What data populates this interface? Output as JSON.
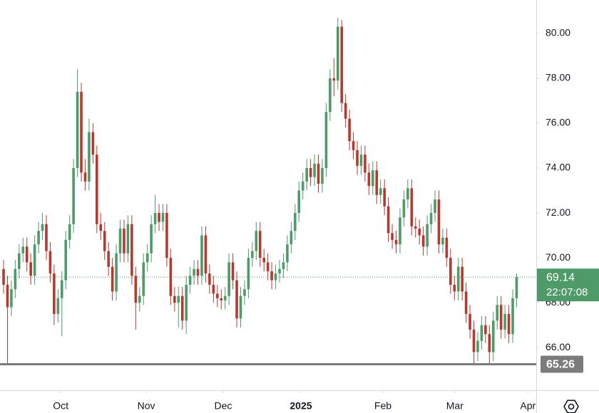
{
  "chart_data": {
    "type": "candlestick",
    "series": [
      {
        "color_up": "#4e9a69",
        "color_down": "#b33a31",
        "values": [
          [
            69.5,
            69.9,
            68.4,
            68.8
          ],
          [
            68.8,
            69.2,
            65.3,
            67.8
          ],
          [
            67.8,
            69.0,
            67.4,
            68.6
          ],
          [
            68.6,
            69.9,
            68.2,
            69.5
          ],
          [
            69.5,
            70.6,
            69.1,
            70.2
          ],
          [
            70.2,
            70.9,
            69.8,
            70.5
          ],
          [
            70.5,
            70.9,
            69.4,
            69.8
          ],
          [
            69.8,
            70.2,
            68.8,
            69.2
          ],
          [
            69.2,
            71.0,
            68.8,
            70.6
          ],
          [
            70.6,
            71.6,
            70.2,
            71.2
          ],
          [
            71.2,
            72.0,
            70.8,
            71.5
          ],
          [
            71.5,
            71.9,
            69.9,
            70.3
          ],
          [
            70.3,
            70.7,
            68.9,
            69.3
          ],
          [
            69.3,
            69.7,
            67.0,
            67.5
          ],
          [
            67.5,
            68.6,
            67.1,
            68.2
          ],
          [
            68.2,
            69.4,
            66.5,
            69.0
          ],
          [
            69.0,
            71.2,
            68.6,
            70.8
          ],
          [
            70.8,
            71.9,
            70.4,
            71.5
          ],
          [
            71.5,
            74.4,
            71.1,
            74.0
          ],
          [
            74.0,
            78.4,
            73.6,
            77.4
          ],
          [
            77.4,
            77.8,
            73.4,
            73.8
          ],
          [
            73.8,
            74.4,
            73.0,
            73.4
          ],
          [
            73.4,
            76.2,
            73.0,
            75.6
          ],
          [
            75.6,
            76.0,
            74.2,
            74.6
          ],
          [
            74.6,
            75.0,
            71.1,
            71.5
          ],
          [
            71.5,
            72.0,
            70.8,
            71.2
          ],
          [
            71.2,
            71.6,
            69.9,
            70.3
          ],
          [
            70.3,
            70.7,
            69.2,
            69.6
          ],
          [
            69.6,
            70.0,
            68.1,
            68.5
          ],
          [
            68.5,
            70.6,
            68.1,
            70.2
          ],
          [
            70.2,
            71.7,
            69.8,
            71.3
          ],
          [
            71.3,
            71.7,
            69.8,
            70.2
          ],
          [
            70.2,
            71.9,
            69.8,
            71.5
          ],
          [
            71.5,
            71.9,
            68.8,
            69.2
          ],
          [
            69.2,
            69.6,
            66.8,
            68.0
          ],
          [
            68.0,
            68.7,
            67.6,
            68.3
          ],
          [
            68.3,
            70.2,
            67.9,
            69.8
          ],
          [
            69.8,
            70.6,
            69.4,
            70.2
          ],
          [
            70.2,
            71.9,
            69.8,
            71.5
          ],
          [
            71.5,
            72.8,
            71.1,
            72.0
          ],
          [
            72.0,
            72.4,
            71.2,
            71.6
          ],
          [
            71.6,
            72.4,
            71.2,
            72.0
          ],
          [
            72.0,
            72.4,
            69.6,
            70.0
          ],
          [
            70.0,
            70.4,
            67.9,
            68.3
          ],
          [
            68.3,
            68.7,
            67.6,
            68.0
          ],
          [
            68.0,
            68.7,
            66.9,
            68.3
          ],
          [
            68.3,
            68.7,
            66.8,
            67.2
          ],
          [
            67.2,
            69.2,
            66.6,
            68.8
          ],
          [
            68.8,
            69.6,
            68.4,
            69.2
          ],
          [
            69.2,
            69.9,
            68.8,
            69.5
          ],
          [
            69.5,
            69.9,
            68.8,
            69.2
          ],
          [
            69.2,
            71.4,
            68.8,
            71.0
          ],
          [
            71.0,
            71.4,
            68.9,
            69.3
          ],
          [
            69.3,
            69.7,
            68.4,
            68.8
          ],
          [
            68.8,
            69.2,
            68.0,
            68.4
          ],
          [
            68.4,
            68.8,
            67.8,
            68.2
          ],
          [
            68.2,
            68.6,
            67.7,
            68.1
          ],
          [
            68.1,
            68.7,
            67.7,
            68.3
          ],
          [
            68.3,
            70.2,
            67.9,
            69.8
          ],
          [
            69.8,
            70.2,
            68.6,
            69.0
          ],
          [
            69.0,
            69.4,
            66.9,
            67.3
          ],
          [
            67.3,
            68.7,
            66.9,
            68.3
          ],
          [
            68.3,
            69.0,
            67.9,
            68.6
          ],
          [
            68.6,
            70.4,
            68.2,
            70.0
          ],
          [
            70.0,
            70.7,
            69.6,
            70.3
          ],
          [
            70.3,
            71.6,
            69.9,
            71.2
          ],
          [
            71.2,
            71.6,
            69.6,
            70.0
          ],
          [
            70.0,
            70.4,
            69.4,
            69.8
          ],
          [
            69.8,
            70.2,
            69.0,
            69.4
          ],
          [
            69.4,
            69.8,
            68.6,
            69.0
          ],
          [
            69.0,
            69.7,
            68.6,
            69.3
          ],
          [
            69.3,
            69.9,
            68.9,
            69.5
          ],
          [
            69.5,
            70.2,
            69.1,
            69.8
          ],
          [
            69.8,
            71.0,
            69.4,
            70.6
          ],
          [
            70.6,
            71.6,
            70.2,
            71.2
          ],
          [
            71.2,
            72.4,
            70.8,
            72.0
          ],
          [
            72.0,
            73.4,
            71.6,
            73.0
          ],
          [
            73.0,
            73.8,
            72.6,
            73.4
          ],
          [
            73.4,
            74.4,
            73.0,
            74.0
          ],
          [
            74.0,
            74.4,
            73.2,
            73.6
          ],
          [
            73.6,
            74.6,
            73.2,
            74.2
          ],
          [
            74.2,
            74.6,
            72.9,
            73.3
          ],
          [
            73.3,
            74.4,
            72.9,
            74.0
          ],
          [
            74.0,
            76.9,
            73.6,
            76.5
          ],
          [
            76.5,
            78.4,
            76.1,
            78.0
          ],
          [
            78.0,
            78.9,
            77.2,
            77.9
          ],
          [
            77.9,
            80.7,
            77.5,
            80.3
          ],
          [
            80.3,
            80.6,
            76.5,
            76.9
          ],
          [
            76.9,
            77.3,
            75.8,
            76.2
          ],
          [
            76.2,
            76.6,
            74.8,
            75.2
          ],
          [
            75.2,
            75.6,
            74.4,
            74.8
          ],
          [
            74.8,
            75.2,
            73.7,
            74.1
          ],
          [
            74.1,
            75.0,
            73.7,
            74.6
          ],
          [
            74.6,
            75.0,
            73.4,
            73.8
          ],
          [
            73.8,
            74.2,
            72.8,
            73.2
          ],
          [
            73.2,
            74.3,
            72.8,
            73.9
          ],
          [
            73.9,
            74.3,
            72.4,
            72.8
          ],
          [
            72.8,
            73.5,
            72.4,
            73.1
          ],
          [
            73.1,
            73.5,
            71.9,
            72.3
          ],
          [
            72.3,
            72.7,
            70.7,
            71.1
          ],
          [
            71.1,
            71.5,
            70.4,
            70.8
          ],
          [
            70.8,
            71.2,
            70.2,
            70.6
          ],
          [
            70.6,
            72.2,
            70.2,
            71.8
          ],
          [
            71.8,
            73.0,
            71.4,
            72.6
          ],
          [
            72.6,
            73.5,
            72.2,
            73.1
          ],
          [
            73.1,
            73.5,
            71.0,
            71.4
          ],
          [
            71.4,
            71.8,
            70.9,
            71.3
          ],
          [
            71.3,
            71.7,
            70.6,
            71.0
          ],
          [
            71.0,
            71.4,
            70.1,
            70.5
          ],
          [
            70.5,
            71.9,
            70.1,
            71.5
          ],
          [
            71.5,
            72.4,
            71.1,
            72.0
          ],
          [
            72.0,
            73.0,
            71.6,
            72.6
          ],
          [
            72.6,
            73.0,
            70.2,
            70.6
          ],
          [
            70.6,
            71.3,
            70.2,
            70.9
          ],
          [
            70.9,
            71.3,
            69.6,
            70.0
          ],
          [
            70.0,
            70.4,
            68.4,
            68.8
          ],
          [
            68.8,
            69.2,
            68.1,
            68.5
          ],
          [
            68.5,
            70.0,
            68.1,
            69.6
          ],
          [
            69.6,
            70.0,
            68.1,
            68.5
          ],
          [
            68.5,
            68.9,
            67.1,
            67.5
          ],
          [
            67.5,
            67.9,
            66.4,
            66.8
          ],
          [
            66.8,
            67.2,
            65.3,
            65.8
          ],
          [
            65.8,
            66.7,
            65.4,
            66.3
          ],
          [
            66.3,
            67.4,
            65.9,
            67.0
          ],
          [
            67.0,
            67.4,
            66.2,
            66.6
          ],
          [
            66.6,
            67.0,
            65.3,
            65.8
          ],
          [
            65.8,
            67.6,
            65.4,
            67.2
          ],
          [
            67.2,
            68.3,
            66.8,
            67.9
          ],
          [
            67.9,
            68.3,
            66.4,
            66.8
          ],
          [
            66.8,
            67.9,
            66.4,
            67.5
          ],
          [
            67.5,
            67.9,
            66.2,
            66.6
          ],
          [
            66.6,
            68.6,
            66.2,
            68.2
          ],
          [
            68.2,
            69.3,
            67.8,
            69.14
          ]
        ]
      }
    ],
    "xlim": [
      -0.92,
      137.05
    ],
    "xticks": [
      {
        "value": 14.7,
        "label": "Oct"
      },
      {
        "value": 36.7,
        "label": "Nov"
      },
      {
        "value": 56.5,
        "label": "Dec"
      },
      {
        "value": 76.5,
        "label": "2025"
      },
      {
        "value": 97.6,
        "label": "Feb"
      },
      {
        "value": 116.1,
        "label": "Mar"
      },
      {
        "value": 134.9,
        "label": "Apr"
      }
    ],
    "ylim": [
      64.1,
      81.49
    ],
    "yticks": [
      {
        "value": 66,
        "label": "66.00"
      },
      {
        "value": 68,
        "label": "68.00"
      },
      {
        "value": 70,
        "label": "70.00"
      },
      {
        "value": 72,
        "label": "72.00"
      },
      {
        "value": 74,
        "label": "74.00"
      },
      {
        "value": 76,
        "label": "76.00"
      },
      {
        "value": 78,
        "label": "78.00"
      },
      {
        "value": 80,
        "label": "80.00"
      }
    ],
    "price_color": "#4e9a69",
    "countdown": "22:07:08",
    "hline": 65.26,
    "hline_color": "#7b7b7b"
  }
}
